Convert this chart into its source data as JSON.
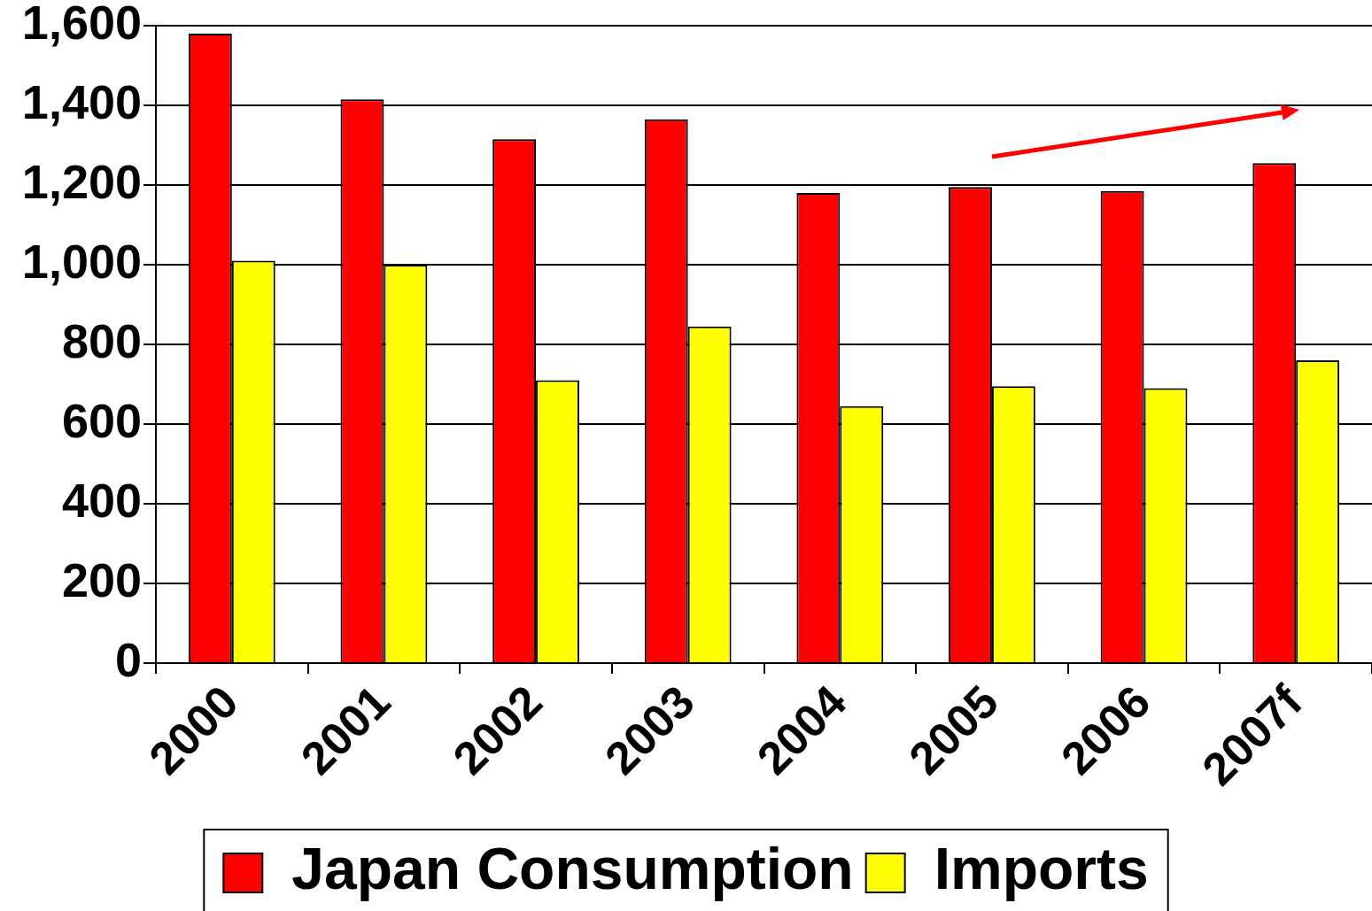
{
  "chart_data": {
    "type": "bar",
    "categories": [
      "2000",
      "2001",
      "2002",
      "2003",
      "2004",
      "2005",
      "2006",
      "2007f"
    ],
    "series": [
      {
        "name": "Japan Consumption",
        "color": "#ff0000",
        "values": [
          1580,
          1415,
          1315,
          1365,
          1180,
          1195,
          1185,
          1255
        ]
      },
      {
        "name": "Imports",
        "color": "#ffff00",
        "values": [
          1010,
          1000,
          710,
          845,
          645,
          695,
          690,
          760
        ]
      }
    ],
    "ylim": [
      0,
      1600
    ],
    "yticks": [
      0,
      200,
      400,
      600,
      800,
      {
        "value": 1000,
        "label": "1,000"
      },
      {
        "value": 1200,
        "label": "1,200"
      },
      {
        "value": 1400,
        "label": "1,400"
      },
      {
        "value": 1600,
        "label": "1,600"
      }
    ],
    "grid": "y",
    "legend": "bottom"
  }
}
